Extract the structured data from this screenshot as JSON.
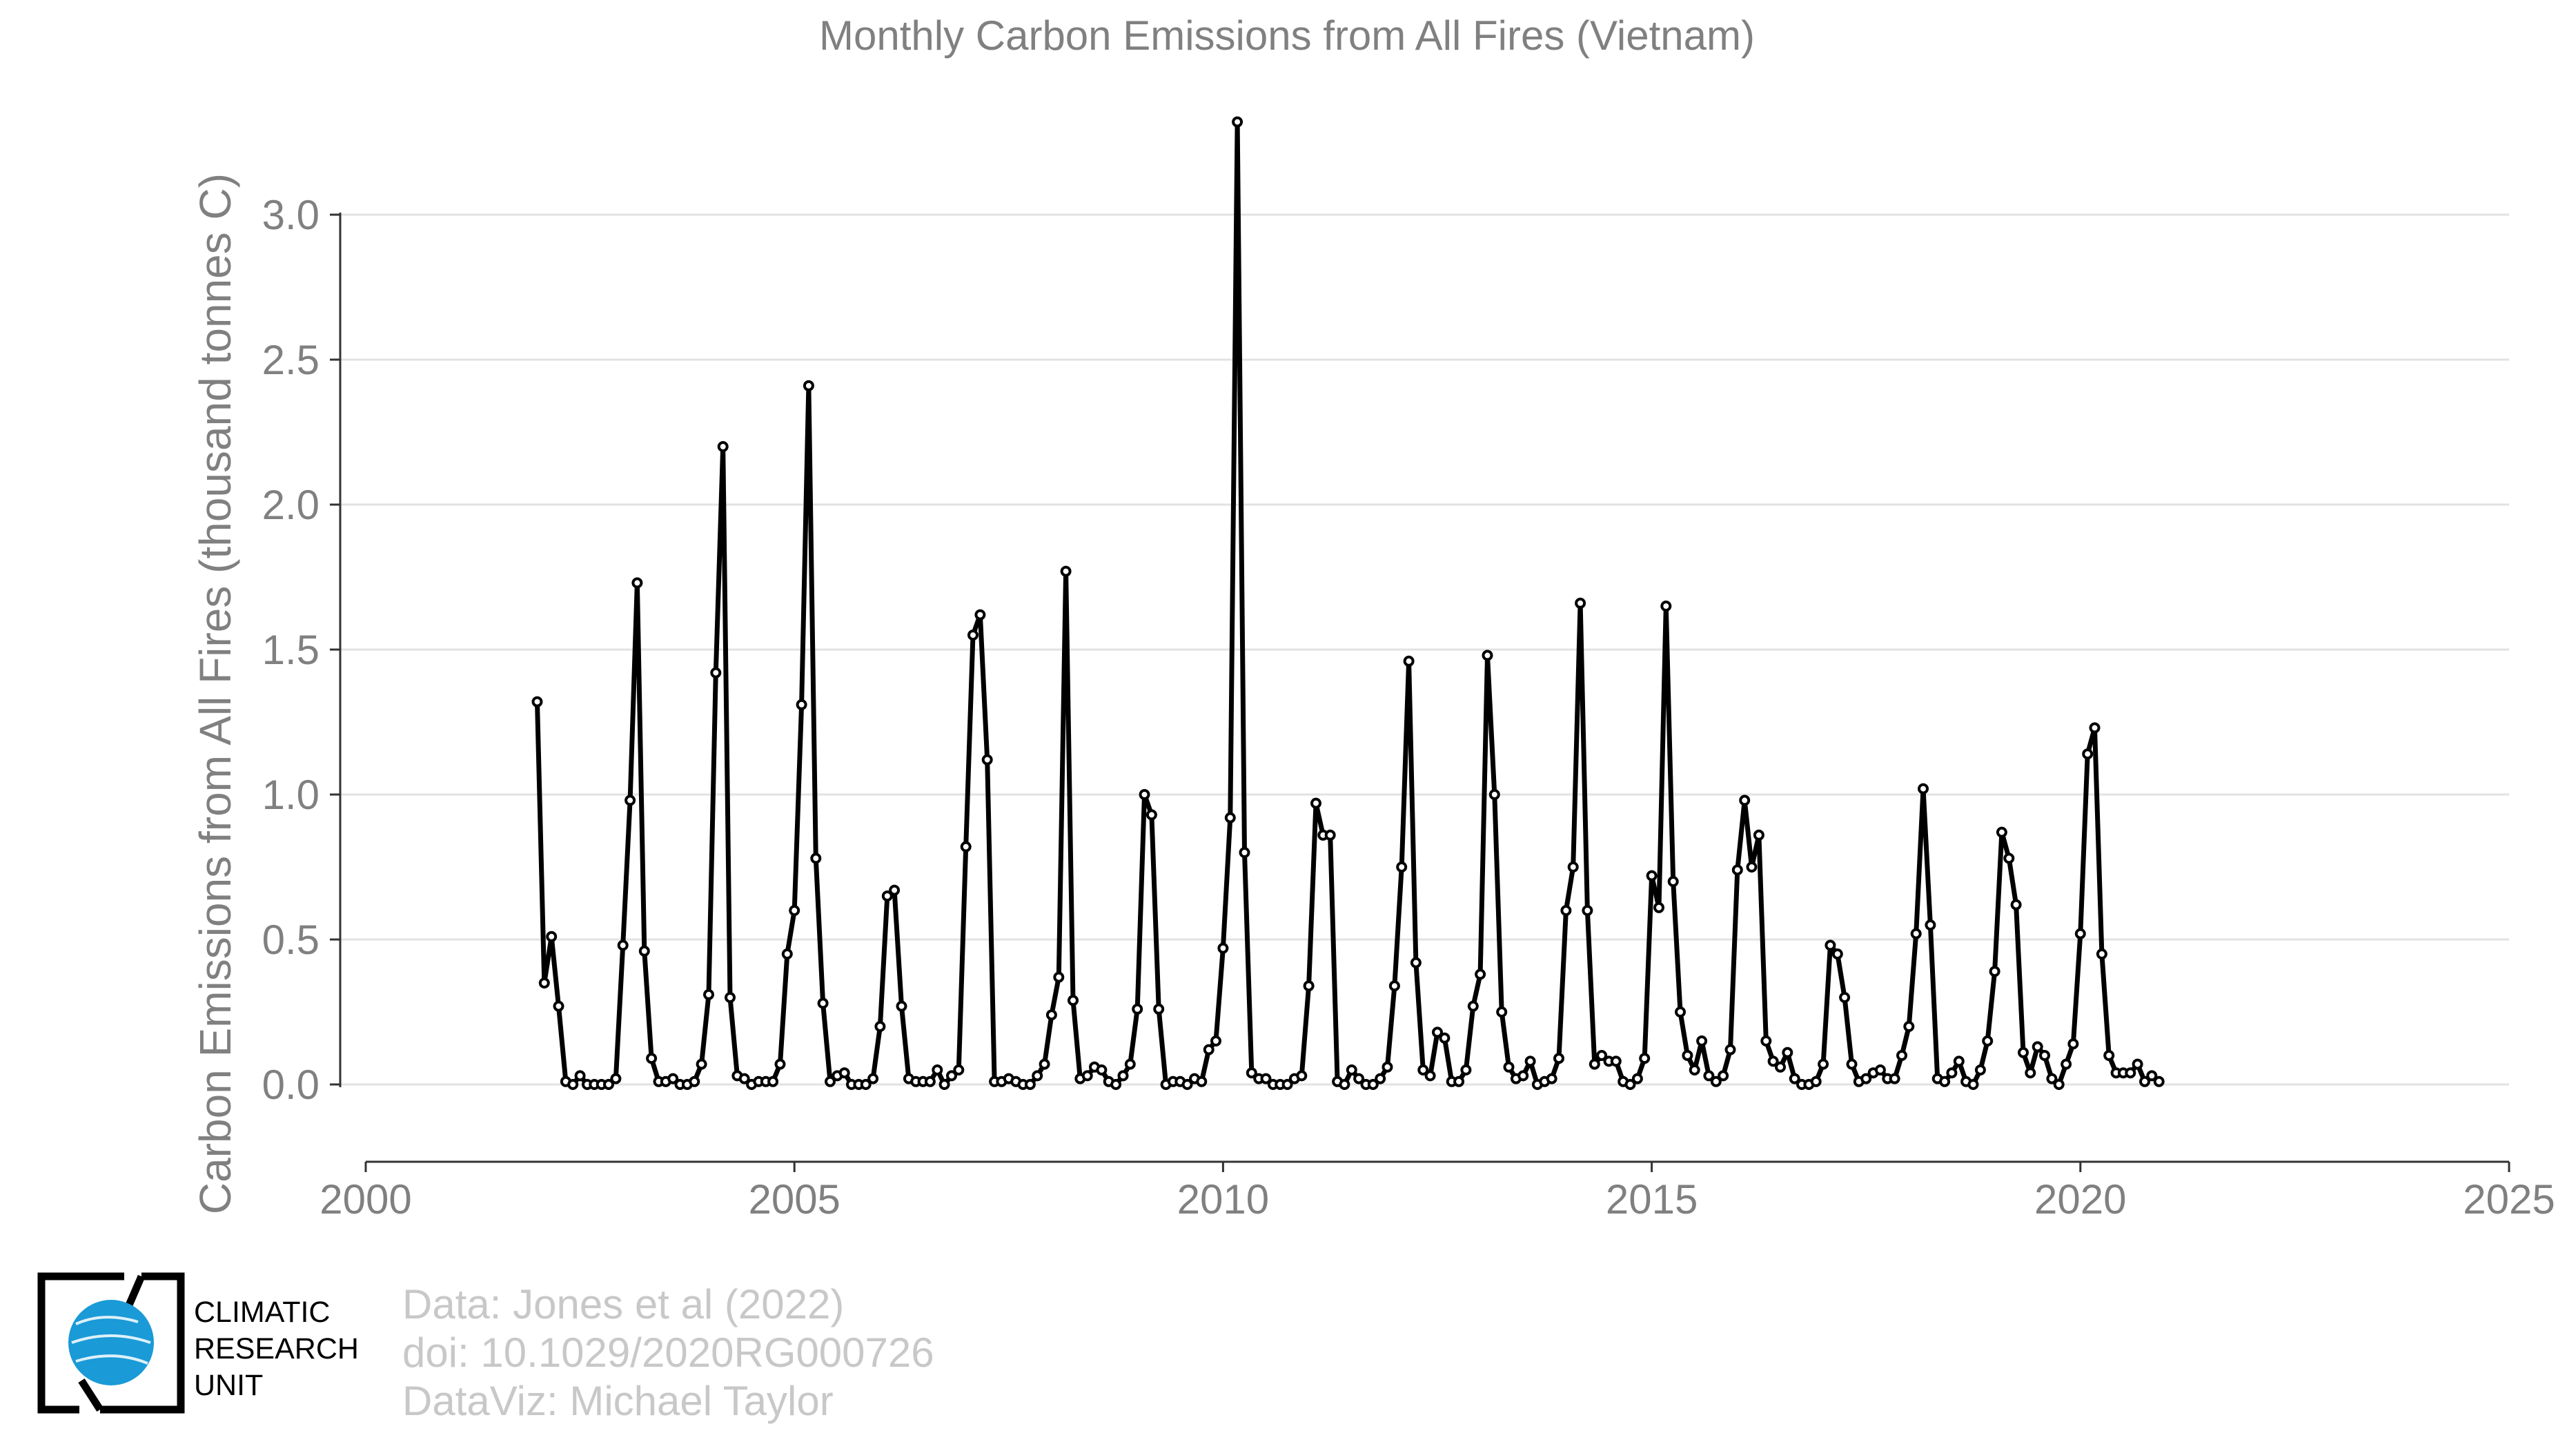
{
  "chart_data": {
    "type": "line",
    "title": "Monthly Carbon Emissions from All Fires (Vietnam)",
    "xlabel": "",
    "ylabel": "Carbon Emissions from All Fires (thousand tonnes C)",
    "xlim": [
      2000,
      2025
    ],
    "ylim": [
      -0.26,
      3.35
    ],
    "x_ticks": [
      "2000",
      "2005",
      "2010",
      "2015",
      "2020",
      "2025"
    ],
    "y_ticks": [
      "0.0",
      "0.5",
      "1.0",
      "1.5",
      "2.0",
      "2.5",
      "3.0"
    ],
    "grid": true,
    "start_date": "2002-01",
    "frequency": "monthly",
    "series": [
      {
        "name": "",
        "color": "#000000",
        "values": [
          1.32,
          0.35,
          0.51,
          0.27,
          0.01,
          0.0,
          0.03,
          0.0,
          0.0,
          0.0,
          0.0,
          0.02,
          0.48,
          0.98,
          1.73,
          0.46,
          0.09,
          0.01,
          0.01,
          0.02,
          0.0,
          0.0,
          0.01,
          0.07,
          0.31,
          1.42,
          2.2,
          0.3,
          0.03,
          0.02,
          0.0,
          0.01,
          0.01,
          0.01,
          0.07,
          0.45,
          0.6,
          1.31,
          2.41,
          0.78,
          0.28,
          0.01,
          0.03,
          0.04,
          0.0,
          0.0,
          0.0,
          0.02,
          0.2,
          0.65,
          0.67,
          0.27,
          0.02,
          0.01,
          0.01,
          0.01,
          0.05,
          0.0,
          0.03,
          0.05,
          0.82,
          1.55,
          1.62,
          1.12,
          0.01,
          0.01,
          0.02,
          0.01,
          0.0,
          0.0,
          0.03,
          0.07,
          0.24,
          0.37,
          1.77,
          0.29,
          0.02,
          0.03,
          0.06,
          0.05,
          0.01,
          0.0,
          0.03,
          0.07,
          0.26,
          1.0,
          0.93,
          0.26,
          0.0,
          0.01,
          0.01,
          0.0,
          0.02,
          0.01,
          0.12,
          0.15,
          0.47,
          0.92,
          3.32,
          0.8,
          0.04,
          0.02,
          0.02,
          0.0,
          0.0,
          0.0,
          0.02,
          0.03,
          0.34,
          0.97,
          0.86,
          0.86,
          0.01,
          0.0,
          0.05,
          0.02,
          0.0,
          0.0,
          0.02,
          0.06,
          0.34,
          0.75,
          1.46,
          0.42,
          0.05,
          0.03,
          0.18,
          0.16,
          0.01,
          0.01,
          0.05,
          0.27,
          0.38,
          1.48,
          1.0,
          0.25,
          0.06,
          0.02,
          0.03,
          0.08,
          0.0,
          0.01,
          0.02,
          0.09,
          0.6,
          0.75,
          1.66,
          0.6,
          0.07,
          0.1,
          0.08,
          0.08,
          0.01,
          0.0,
          0.02,
          0.09,
          0.72,
          0.61,
          1.65,
          0.7,
          0.25,
          0.1,
          0.05,
          0.15,
          0.03,
          0.01,
          0.03,
          0.12,
          0.74,
          0.98,
          0.75,
          0.86,
          0.15,
          0.08,
          0.06,
          0.11,
          0.02,
          0.0,
          0.0,
          0.01,
          0.07,
          0.48,
          0.45,
          0.3,
          0.07,
          0.01,
          0.02,
          0.04,
          0.05,
          0.02,
          0.02,
          0.1,
          0.2,
          0.52,
          1.02,
          0.55,
          0.02,
          0.01,
          0.04,
          0.08,
          0.01,
          0.0,
          0.05,
          0.15,
          0.39,
          0.87,
          0.78,
          0.62,
          0.11,
          0.04,
          0.13,
          0.1,
          0.02,
          0.0,
          0.07,
          0.14,
          0.52,
          1.14,
          1.23,
          0.45,
          0.1,
          0.04,
          0.04,
          0.04,
          0.07,
          0.01,
          0.03,
          0.01
        ]
      }
    ]
  },
  "logo": {
    "line1": "CLIMATIC",
    "line2": "RESEARCH",
    "line3": "UNIT",
    "globe_color": "#1a9ad7"
  },
  "credits": {
    "line1": "Data: Jones et al (2022)",
    "line2": "doi: 10.1029/2020RG000726",
    "line3": "DataViz: Michael Taylor"
  }
}
